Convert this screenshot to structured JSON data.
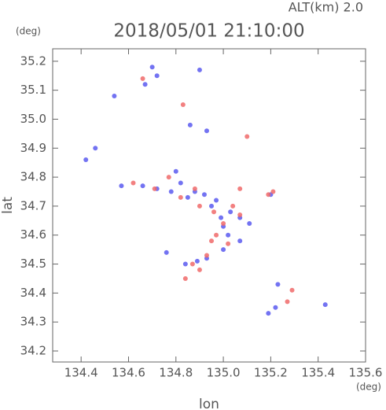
{
  "chart_data": {
    "type": "scatter",
    "title": "2018/05/01 21:10:00",
    "subtitle": "ALT(km) 2.0",
    "y_unit": "(deg)",
    "x_unit": "(deg)",
    "x_label": "lon",
    "y_label": "lat",
    "xlim": [
      134.28,
      135.6
    ],
    "ylim": [
      34.162,
      35.243
    ],
    "xticks": [
      134.4,
      134.6,
      134.8,
      {
        "value": 135.0,
        "label": "135.0"
      },
      135.2,
      135.4,
      135.6
    ],
    "yticks": [
      34.2,
      34.3,
      34.4,
      34.5,
      34.6,
      34.7,
      34.8,
      34.9,
      {
        "value": 35.0,
        "label": "35.0"
      },
      35.1,
      35.2
    ],
    "series": [
      {
        "color": "#5a5af0",
        "x": [
          134.54,
          134.67,
          134.7,
          134.72,
          134.9,
          134.86,
          134.93,
          134.42,
          134.46,
          134.57,
          134.66,
          134.72,
          134.8,
          134.78,
          134.82,
          134.85,
          134.88,
          134.92,
          134.97,
          135.03,
          135.0,
          135.07,
          135.02,
          135.07,
          135.11,
          134.76,
          134.84,
          134.89,
          134.93,
          135.0,
          135.19,
          135.22,
          135.43,
          135.2,
          135.23,
          134.99,
          134.95
        ],
        "values": [
          35.08,
          35.12,
          35.18,
          35.15,
          35.17,
          34.98,
          34.96,
          34.86,
          34.9,
          34.77,
          34.77,
          34.76,
          34.82,
          34.75,
          34.78,
          34.73,
          34.75,
          34.74,
          34.72,
          34.68,
          34.63,
          34.66,
          34.6,
          34.58,
          34.64,
          34.54,
          34.5,
          34.51,
          34.52,
          34.55,
          34.33,
          34.35,
          34.36,
          34.74,
          34.43,
          34.66,
          34.7
        ]
      },
      {
        "color": "#f06a6a",
        "x": [
          134.66,
          134.83,
          135.1,
          134.62,
          134.71,
          134.77,
          134.82,
          134.88,
          134.9,
          134.96,
          135.04,
          135.07,
          135.07,
          134.97,
          135.0,
          134.95,
          135.21,
          135.19,
          134.84,
          134.87,
          134.9,
          134.93,
          135.27,
          135.29,
          135.02
        ],
        "values": [
          35.14,
          35.05,
          34.94,
          34.78,
          34.76,
          34.8,
          34.73,
          34.76,
          34.7,
          34.68,
          34.7,
          34.76,
          34.67,
          34.6,
          34.64,
          34.58,
          34.75,
          34.74,
          34.45,
          34.5,
          34.48,
          34.53,
          34.37,
          34.41,
          34.57
        ]
      }
    ]
  }
}
